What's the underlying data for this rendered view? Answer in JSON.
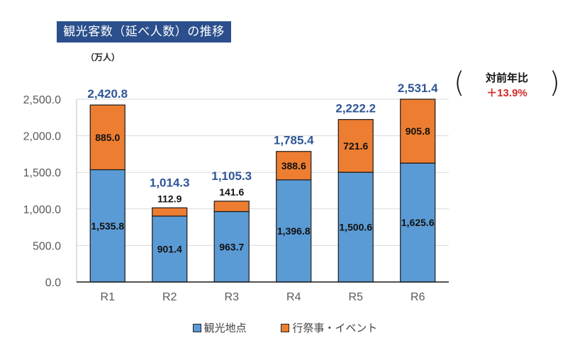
{
  "header": {
    "title": "観光客数（延べ人数）の推移",
    "unit": "（万人）"
  },
  "yoy": {
    "label": "対前年比",
    "value": "＋13.9%",
    "value_color": "#d22a2a"
  },
  "legend": [
    {
      "label": "観光地点",
      "color": "#5b9bd5"
    },
    {
      "label": "行祭事・イベント",
      "color": "#ed7d31"
    }
  ],
  "chart_data": {
    "type": "bar",
    "stacked": true,
    "title": "観光客数（延べ人数）の推移",
    "ylabel": "（万人）",
    "xlabel": "",
    "categories": [
      "R1",
      "R2",
      "R3",
      "R4",
      "R5",
      "R6"
    ],
    "series": [
      {
        "name": "観光地点",
        "color": "#5b9bd5",
        "values": [
          1535.8,
          901.4,
          963.7,
          1396.8,
          1500.6,
          1625.6
        ],
        "labels": [
          "1,535.8",
          "901.4",
          "963.7",
          "1,396.8",
          "1,500.6",
          "1,625.6"
        ]
      },
      {
        "name": "行祭事・イベント",
        "color": "#ed7d31",
        "values": [
          885.0,
          112.9,
          141.6,
          388.6,
          721.6,
          905.8
        ],
        "labels": [
          "885.0",
          "112.9",
          "141.6",
          "388.6",
          "721.6",
          "905.8"
        ]
      }
    ],
    "totals": [
      2420.8,
      1014.3,
      1105.3,
      1785.4,
      2222.2,
      2531.4
    ],
    "total_labels": [
      "2,420.8",
      "1,014.3",
      "1,105.3",
      "1,785.4",
      "2,222.2",
      "2,531.4"
    ],
    "total_label_color": "#2f5597",
    "ylim": [
      0,
      2500
    ],
    "yticks": [
      0,
      500,
      1000,
      1500,
      2000,
      2500
    ],
    "ytick_labels": [
      "0.0",
      "500.0",
      "1,000.0",
      "1,500.0",
      "2,000.0",
      "2,500.0"
    ],
    "grid": true,
    "legend_position": "bottom"
  }
}
